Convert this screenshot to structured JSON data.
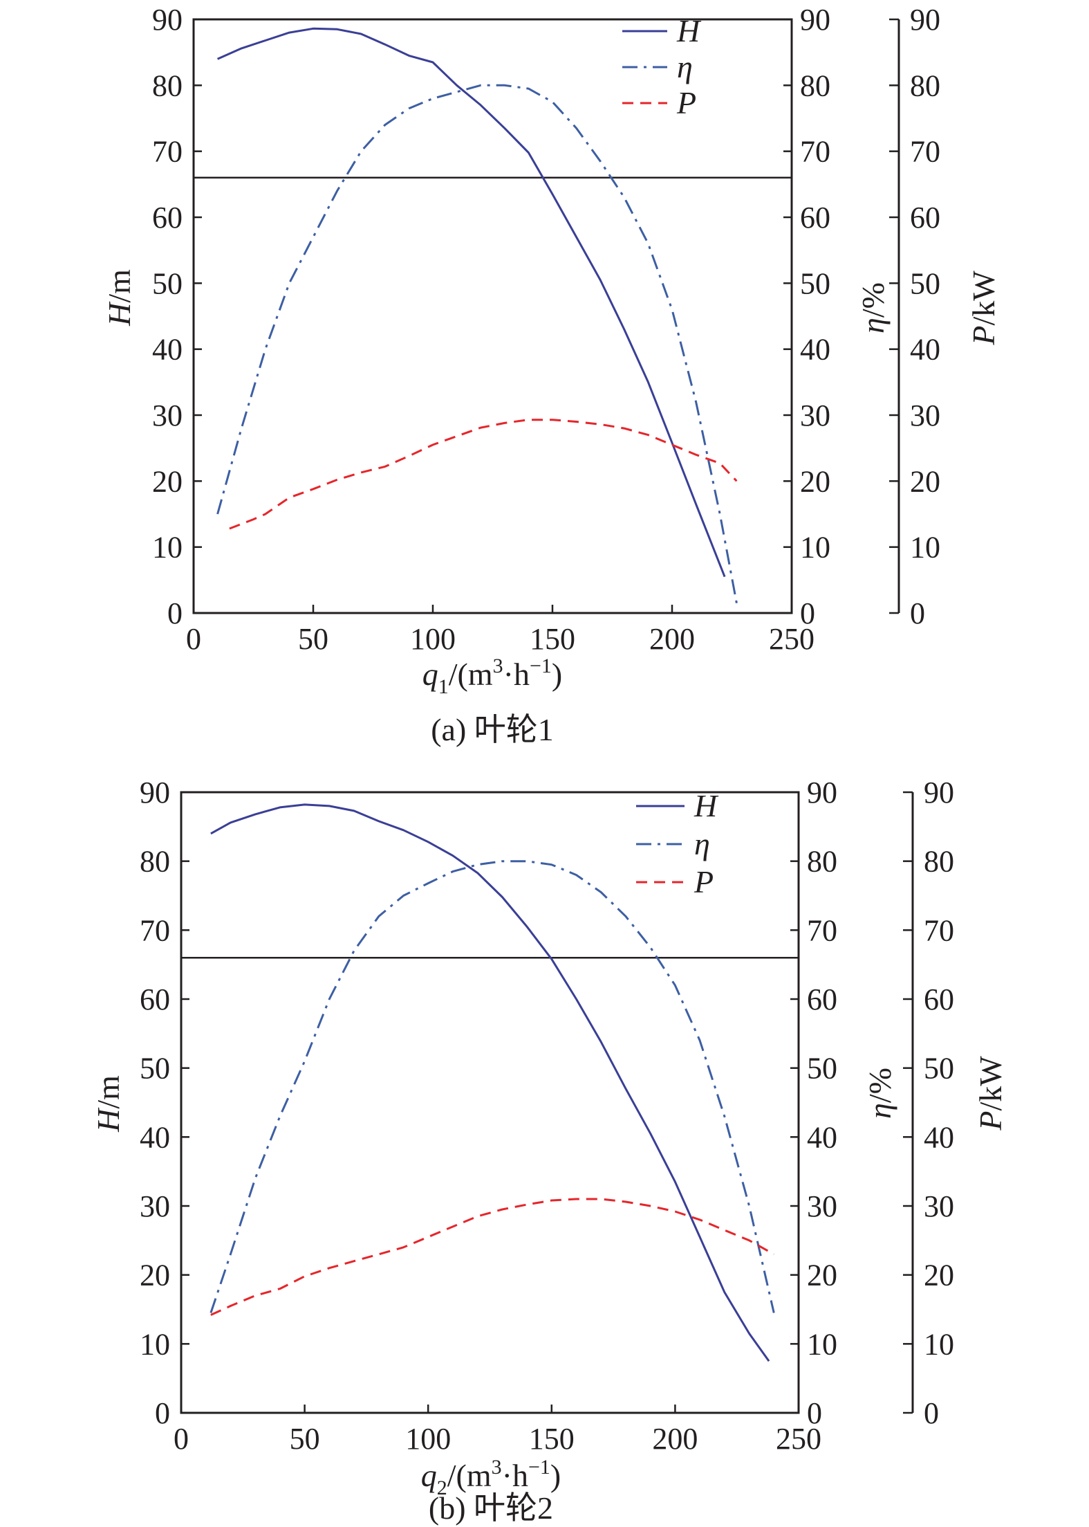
{
  "figure": {
    "panels": [
      {
        "caption": "(a) 叶轮1",
        "xlabel_q": "q",
        "xlabel_sub": "1",
        "xlabel_rest1": "/(m",
        "xlabel_sup1": "3",
        "xlabel_rest2": "·h",
        "xlabel_sup2": "−1",
        "xlabel_rest3": ")",
        "ylabel_left_var": "H",
        "ylabel_left_unit": "/m",
        "ylabel_mid_var": "η",
        "ylabel_mid_unit": "/%",
        "ylabel_right_var": "P",
        "ylabel_right_unit": "/kW"
      },
      {
        "caption": "(b) 叶轮2",
        "xlabel_q": "q",
        "xlabel_sub": "2",
        "xlabel_rest1": "/(m",
        "xlabel_sup1": "3",
        "xlabel_rest2": "·h",
        "xlabel_sup2": "−1",
        "xlabel_rest3": ")",
        "ylabel_left_var": "H",
        "ylabel_left_unit": "/m",
        "ylabel_mid_var": "η",
        "ylabel_mid_unit": "/%",
        "ylabel_right_var": "P",
        "ylabel_right_unit": "/kW"
      }
    ]
  },
  "chart_data": [
    {
      "type": "line",
      "xlabel": "q1/(m3·h−1)",
      "xlim": [
        0,
        250
      ],
      "xticks": [
        0,
        50,
        100,
        150,
        200,
        250
      ],
      "ylim": [
        0,
        90
      ],
      "yticks": [
        0,
        10,
        20,
        30,
        40,
        50,
        60,
        70,
        80,
        90
      ],
      "axes": [
        {
          "label": "H/m",
          "position": "left",
          "range": [
            0,
            90
          ]
        },
        {
          "label": "η/%",
          "position": "right",
          "range": [
            0,
            90
          ]
        },
        {
          "label": "P/kW",
          "position": "right-outer",
          "range": [
            0,
            90
          ]
        }
      ],
      "reference_line": {
        "axis": "H",
        "y": 66
      },
      "legend": {
        "position": "top-right",
        "entries": [
          "H",
          "η",
          "P"
        ]
      },
      "series": [
        {
          "name": "H",
          "axis": "H",
          "style": "solid",
          "color": "#3a3f96",
          "x": [
            10,
            20,
            30,
            40,
            50,
            60,
            70,
            80,
            90,
            100,
            110,
            120,
            130,
            140,
            150,
            160,
            170,
            180,
            190,
            200,
            210,
            222
          ],
          "y": [
            84,
            85.6,
            86.8,
            88,
            88.6,
            88.5,
            87.8,
            86.2,
            84.5,
            83.5,
            80,
            77,
            73.5,
            69.8,
            63.5,
            57,
            50.5,
            43,
            35,
            25.8,
            16.5,
            5.5
          ]
        },
        {
          "name": "η",
          "axis": "η",
          "style": "dashdot",
          "color": "#3d5fa3",
          "x": [
            10,
            20,
            30,
            40,
            50,
            60,
            70,
            80,
            90,
            100,
            110,
            120,
            130,
            140,
            150,
            160,
            170,
            180,
            190,
            200,
            210,
            220,
            227
          ],
          "y": [
            15,
            28,
            40,
            50,
            57,
            64,
            70,
            74,
            76.5,
            78,
            79,
            80,
            80,
            79.5,
            77.5,
            73.5,
            68.5,
            63,
            56,
            46,
            32,
            15,
            1.5
          ]
        },
        {
          "name": "P",
          "axis": "P",
          "style": "dashed",
          "color": "#e5262b",
          "x": [
            15,
            25,
            30,
            40,
            50,
            60,
            70,
            80,
            90,
            100,
            110,
            120,
            130,
            140,
            150,
            160,
            170,
            180,
            190,
            200,
            210,
            220,
            227
          ],
          "y": [
            12.8,
            14.2,
            15,
            17.5,
            18.8,
            20.2,
            21.3,
            22.2,
            23.8,
            25.5,
            26.8,
            28.1,
            28.8,
            29.3,
            29.3,
            29,
            28.6,
            28,
            27,
            25.5,
            24,
            22.7,
            20
          ]
        }
      ]
    },
    {
      "type": "line",
      "xlabel": "q2/(m3·h−1)",
      "xlim": [
        0,
        250
      ],
      "xticks": [
        0,
        50,
        100,
        150,
        200,
        250
      ],
      "ylim": [
        0,
        90
      ],
      "yticks": [
        0,
        10,
        20,
        30,
        40,
        50,
        60,
        70,
        80,
        90
      ],
      "axes": [
        {
          "label": "H/m",
          "position": "left",
          "range": [
            0,
            90
          ]
        },
        {
          "label": "η/%",
          "position": "right",
          "range": [
            0,
            90
          ]
        },
        {
          "label": "P/kW",
          "position": "right-outer",
          "range": [
            0,
            90
          ]
        }
      ],
      "reference_line": {
        "axis": "H",
        "y": 66
      },
      "legend": {
        "position": "top-right",
        "entries": [
          "H",
          "η",
          "P"
        ]
      },
      "series": [
        {
          "name": "H",
          "axis": "H",
          "style": "solid",
          "color": "#3a3f96",
          "x": [
            12,
            20,
            30,
            40,
            50,
            60,
            70,
            80,
            90,
            100,
            110,
            120,
            130,
            140,
            150,
            160,
            170,
            180,
            190,
            200,
            210,
            220,
            230,
            238
          ],
          "y": [
            84,
            85.6,
            86.8,
            87.8,
            88.2,
            88,
            87.3,
            85.8,
            84.5,
            82.8,
            80.8,
            78.3,
            74.8,
            70.5,
            65.8,
            60,
            53.8,
            47,
            40.5,
            33.5,
            25.5,
            17.5,
            11.5,
            7.5
          ]
        },
        {
          "name": "η",
          "axis": "η",
          "style": "dashdot",
          "color": "#3d5fa3",
          "x": [
            12,
            20,
            30,
            40,
            50,
            60,
            70,
            80,
            90,
            100,
            110,
            120,
            130,
            140,
            150,
            160,
            170,
            180,
            190,
            200,
            210,
            220,
            230,
            240
          ],
          "y": [
            14.5,
            23,
            34,
            43,
            51,
            60,
            67,
            72,
            75,
            76.8,
            78.5,
            79.5,
            80,
            80,
            79.5,
            78,
            75.5,
            72,
            67.5,
            62,
            54,
            43,
            30,
            14.5
          ]
        },
        {
          "name": "P",
          "axis": "P",
          "style": "dashed",
          "color": "#e5262b",
          "x": [
            12,
            20,
            30,
            40,
            50,
            60,
            70,
            80,
            90,
            100,
            110,
            120,
            130,
            140,
            150,
            160,
            170,
            180,
            190,
            200,
            210,
            220,
            230,
            240
          ],
          "y": [
            14.2,
            15.5,
            17,
            18,
            19.8,
            21,
            22,
            23,
            24,
            25.5,
            27,
            28.5,
            29.5,
            30.2,
            30.8,
            31,
            31,
            30.6,
            30,
            29.2,
            28,
            26.5,
            25,
            23
          ]
        }
      ]
    }
  ]
}
